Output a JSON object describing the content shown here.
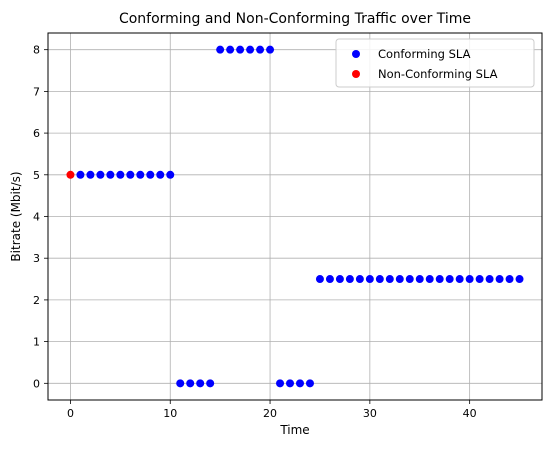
{
  "chart_data": {
    "type": "scatter",
    "title": "Conforming and Non-Conforming Traffic over Time",
    "xlabel": "Time",
    "ylabel": "Bitrate (Mbit/s)",
    "xlim": [
      -2.25,
      47.25
    ],
    "ylim": [
      -0.4,
      8.4
    ],
    "xticks": [
      0,
      10,
      20,
      30,
      40
    ],
    "yticks": [
      0,
      1,
      2,
      3,
      4,
      5,
      6,
      7,
      8
    ],
    "grid": true,
    "legend_position": "top-right",
    "series": [
      {
        "name": "Conforming SLA",
        "color": "#0000ff",
        "x": [
          1,
          2,
          3,
          4,
          5,
          6,
          7,
          8,
          9,
          10,
          11,
          12,
          13,
          14,
          15,
          16,
          17,
          18,
          19,
          20,
          21,
          22,
          23,
          24,
          25,
          26,
          27,
          28,
          29,
          30,
          31,
          32,
          33,
          34,
          35,
          36,
          37,
          38,
          39,
          40,
          41,
          42,
          43,
          44,
          45
        ],
        "y": [
          5,
          5,
          5,
          5,
          5,
          5,
          5,
          5,
          5,
          5,
          0,
          0,
          0,
          0,
          8,
          8,
          8,
          8,
          8,
          8,
          0,
          0,
          0,
          0,
          2.5,
          2.5,
          2.5,
          2.5,
          2.5,
          2.5,
          2.5,
          2.5,
          2.5,
          2.5,
          2.5,
          2.5,
          2.5,
          2.5,
          2.5,
          2.5,
          2.5,
          2.5,
          2.5,
          2.5,
          2.5
        ]
      },
      {
        "name": "Non-Conforming SLA",
        "color": "#ff0000",
        "x": [
          0
        ],
        "y": [
          5
        ]
      }
    ]
  }
}
